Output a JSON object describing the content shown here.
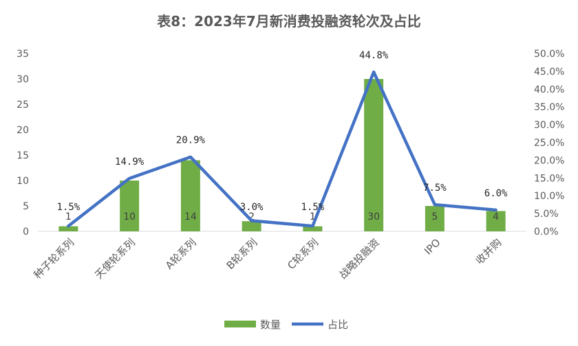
{
  "chart_data": {
    "type": "bar",
    "title": "表8：2023年7月新消费投融资轮次及占比",
    "categories": [
      "种子轮系列",
      "天使轮系列",
      "A轮系列",
      "B轮系列",
      "C轮系列",
      "战略投融资",
      "IPO",
      "收并购"
    ],
    "series": [
      {
        "name": "数量",
        "type": "bar",
        "axis": "left",
        "color": "#70ad47",
        "values": [
          1,
          10,
          14,
          2,
          1,
          30,
          5,
          4
        ],
        "labels": [
          "1",
          "10",
          "14",
          "2",
          "1",
          "30",
          "5",
          "4"
        ]
      },
      {
        "name": "占比",
        "type": "line",
        "axis": "right",
        "color": "#4472c4",
        "values": [
          1.5,
          14.9,
          20.9,
          3.0,
          1.5,
          44.8,
          7.5,
          6.0
        ],
        "labels": [
          "1.5%",
          "14.9%",
          "20.9%",
          "3.0%",
          "1.5%",
          "44.8%",
          "7.5%",
          "6.0%"
        ]
      }
    ],
    "y_left": {
      "min": 0,
      "max": 35,
      "step": 5,
      "ticks": [
        "0",
        "5",
        "10",
        "15",
        "20",
        "25",
        "30",
        "35"
      ]
    },
    "y_right": {
      "min": 0,
      "max": 50,
      "step": 5,
      "ticks": [
        "0.0%",
        "5.0%",
        "10.0%",
        "15.0%",
        "20.0%",
        "25.0%",
        "30.0%",
        "35.0%",
        "40.0%",
        "45.0%",
        "50.0%"
      ]
    },
    "grid": false,
    "legend_position": "bottom"
  }
}
